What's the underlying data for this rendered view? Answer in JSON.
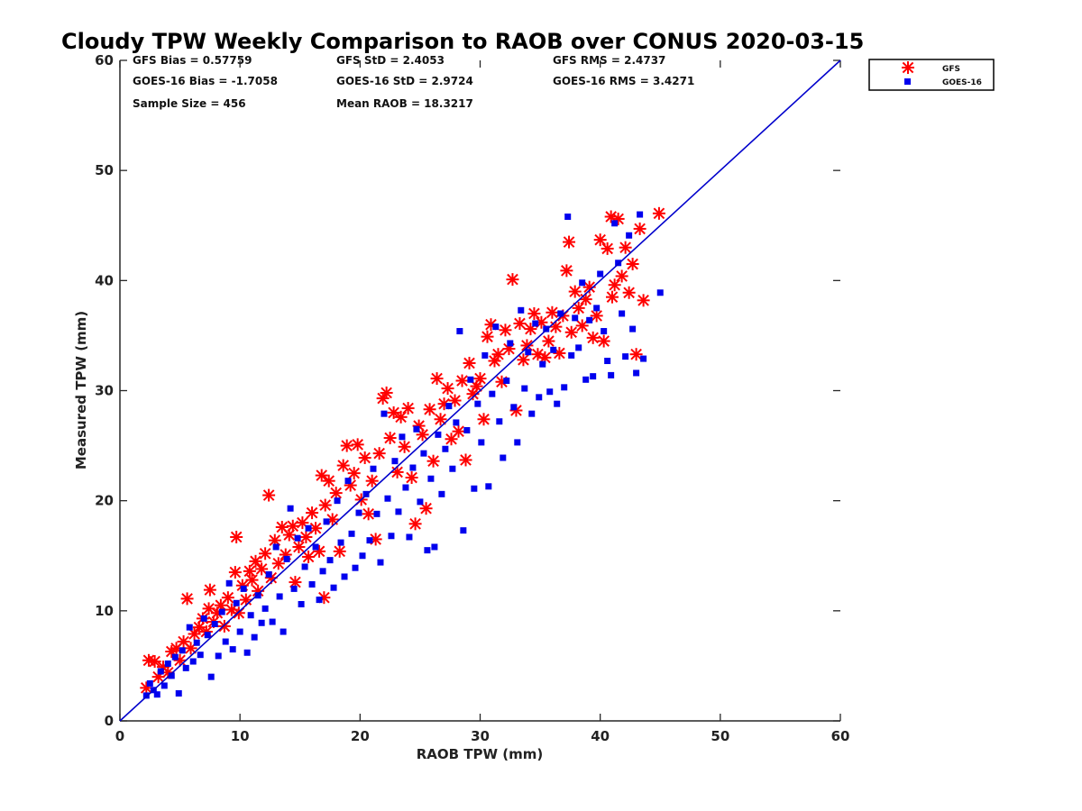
{
  "chart_data": {
    "type": "scatter",
    "title": "Cloudy TPW Weekly Comparison to RAOB over CONUS 2020-03-15",
    "xlabel": "RAOB TPW (mm)",
    "ylabel": "Measured TPW (mm)",
    "xlim": [
      0,
      60
    ],
    "ylim": [
      0,
      60
    ],
    "xticks": [
      0,
      10,
      20,
      30,
      40,
      50,
      60
    ],
    "yticks": [
      0,
      10,
      20,
      30,
      40,
      50,
      60
    ],
    "grid": false,
    "legend_position": "top-right",
    "stats": [
      "GFS Bias = 0.57759",
      "GFS StD = 2.4053",
      "GFS RMS = 2.4737",
      "GOES-16 Bias = -1.7058",
      "GOES-16 StD = 2.9724",
      "GOES-16 RMS = 3.4271",
      "Sample Size = 456",
      "Mean RAOB = 18.3217"
    ],
    "one_to_one_line": {
      "x": [
        0,
        60
      ],
      "y": [
        0,
        60
      ],
      "color": "#0000cc"
    },
    "series": [
      {
        "name": "GFS",
        "marker": "asterisk",
        "color": "#ff0000",
        "points": [
          [
            2.2,
            3.0
          ],
          [
            2.4,
            5.5
          ],
          [
            2.9,
            5.4
          ],
          [
            3.2,
            4.0
          ],
          [
            3.6,
            4.9
          ],
          [
            4.0,
            4.4
          ],
          [
            4.3,
            6.3
          ],
          [
            4.7,
            6.6
          ],
          [
            5.0,
            5.5
          ],
          [
            5.3,
            7.2
          ],
          [
            5.6,
            11.1
          ],
          [
            5.9,
            6.6
          ],
          [
            6.2,
            7.9
          ],
          [
            6.6,
            8.5
          ],
          [
            6.9,
            9.3
          ],
          [
            7.2,
            8.1
          ],
          [
            7.4,
            10.2
          ],
          [
            7.5,
            11.9
          ],
          [
            7.8,
            9.0
          ],
          [
            8.1,
            9.8
          ],
          [
            8.4,
            10.5
          ],
          [
            8.7,
            8.6
          ],
          [
            9.0,
            11.2
          ],
          [
            9.3,
            10.1
          ],
          [
            9.6,
            13.5
          ],
          [
            9.7,
            16.7
          ],
          [
            9.9,
            9.8
          ],
          [
            10.2,
            12.3
          ],
          [
            10.5,
            11.0
          ],
          [
            10.8,
            13.6
          ],
          [
            11.0,
            12.8
          ],
          [
            11.3,
            14.5
          ],
          [
            11.5,
            11.8
          ],
          [
            11.8,
            13.8
          ],
          [
            12.1,
            15.2
          ],
          [
            12.4,
            20.5
          ],
          [
            12.6,
            13.0
          ],
          [
            12.9,
            16.4
          ],
          [
            13.2,
            14.3
          ],
          [
            13.5,
            17.6
          ],
          [
            13.8,
            15.1
          ],
          [
            14.1,
            16.9
          ],
          [
            14.4,
            17.7
          ],
          [
            14.6,
            12.6
          ],
          [
            14.9,
            15.8
          ],
          [
            15.2,
            18.0
          ],
          [
            15.5,
            16.7
          ],
          [
            15.7,
            14.9
          ],
          [
            16.0,
            18.9
          ],
          [
            16.3,
            17.5
          ],
          [
            16.6,
            15.4
          ],
          [
            16.8,
            22.3
          ],
          [
            17.0,
            11.2
          ],
          [
            17.1,
            19.6
          ],
          [
            17.4,
            21.8
          ],
          [
            17.7,
            18.3
          ],
          [
            18.0,
            20.7
          ],
          [
            18.3,
            15.4
          ],
          [
            18.6,
            23.2
          ],
          [
            18.9,
            25.0
          ],
          [
            19.2,
            21.4
          ],
          [
            19.5,
            22.5
          ],
          [
            19.8,
            25.1
          ],
          [
            20.1,
            20.1
          ],
          [
            20.4,
            23.9
          ],
          [
            20.7,
            18.8
          ],
          [
            21.0,
            21.8
          ],
          [
            21.3,
            16.5
          ],
          [
            21.6,
            24.3
          ],
          [
            21.9,
            29.3
          ],
          [
            22.2,
            29.8
          ],
          [
            22.5,
            25.7
          ],
          [
            22.8,
            28.0
          ],
          [
            23.1,
            22.6
          ],
          [
            23.4,
            27.6
          ],
          [
            23.7,
            24.9
          ],
          [
            24.0,
            28.4
          ],
          [
            24.3,
            22.1
          ],
          [
            24.6,
            17.9
          ],
          [
            24.9,
            26.8
          ],
          [
            25.2,
            26.0
          ],
          [
            25.5,
            19.3
          ],
          [
            25.8,
            28.3
          ],
          [
            26.1,
            23.6
          ],
          [
            26.4,
            31.1
          ],
          [
            26.7,
            27.4
          ],
          [
            27.0,
            28.8
          ],
          [
            27.3,
            30.2
          ],
          [
            27.6,
            25.6
          ],
          [
            27.9,
            29.1
          ],
          [
            28.2,
            26.3
          ],
          [
            28.5,
            30.9
          ],
          [
            28.8,
            23.7
          ],
          [
            29.1,
            32.5
          ],
          [
            29.4,
            29.7
          ],
          [
            29.7,
            30.4
          ],
          [
            30.0,
            31.1
          ],
          [
            30.3,
            27.4
          ],
          [
            30.6,
            34.9
          ],
          [
            30.9,
            36.0
          ],
          [
            31.2,
            32.7
          ],
          [
            31.5,
            33.3
          ],
          [
            31.8,
            30.8
          ],
          [
            32.1,
            35.5
          ],
          [
            32.4,
            33.8
          ],
          [
            32.7,
            40.1
          ],
          [
            33.0,
            28.2
          ],
          [
            33.3,
            36.1
          ],
          [
            33.6,
            32.8
          ],
          [
            33.9,
            34.1
          ],
          [
            34.2,
            35.6
          ],
          [
            34.5,
            37.0
          ],
          [
            34.8,
            33.3
          ],
          [
            35.1,
            36.2
          ],
          [
            35.4,
            33.0
          ],
          [
            35.7,
            34.5
          ],
          [
            36.0,
            37.1
          ],
          [
            36.3,
            35.8
          ],
          [
            36.6,
            33.4
          ],
          [
            36.9,
            36.8
          ],
          [
            37.2,
            40.9
          ],
          [
            37.4,
            43.5
          ],
          [
            37.6,
            35.3
          ],
          [
            37.9,
            39.0
          ],
          [
            38.2,
            37.5
          ],
          [
            38.5,
            35.9
          ],
          [
            38.8,
            38.3
          ],
          [
            39.1,
            39.4
          ],
          [
            39.4,
            34.8
          ],
          [
            39.7,
            36.8
          ],
          [
            40.0,
            43.7
          ],
          [
            40.3,
            34.5
          ],
          [
            40.6,
            42.9
          ],
          [
            40.9,
            45.8
          ],
          [
            41.0,
            38.5
          ],
          [
            41.2,
            39.6
          ],
          [
            41.5,
            45.6
          ],
          [
            41.8,
            40.4
          ],
          [
            42.1,
            43.0
          ],
          [
            42.4,
            38.9
          ],
          [
            42.7,
            41.5
          ],
          [
            43.0,
            33.3
          ],
          [
            43.3,
            44.7
          ],
          [
            43.6,
            38.2
          ],
          [
            44.9,
            46.1
          ]
        ]
      },
      {
        "name": "GOES-16",
        "marker": "square",
        "color": "#0000ee",
        "points": [
          [
            2.2,
            2.3
          ],
          [
            2.5,
            3.4
          ],
          [
            2.8,
            2.8
          ],
          [
            3.1,
            2.4
          ],
          [
            3.4,
            4.5
          ],
          [
            3.7,
            3.2
          ],
          [
            4.0,
            5.2
          ],
          [
            4.3,
            4.1
          ],
          [
            4.6,
            5.8
          ],
          [
            4.9,
            2.5
          ],
          [
            5.2,
            6.4
          ],
          [
            5.5,
            4.8
          ],
          [
            5.8,
            8.5
          ],
          [
            6.1,
            5.4
          ],
          [
            6.4,
            7.1
          ],
          [
            6.7,
            6.0
          ],
          [
            7.0,
            9.3
          ],
          [
            7.3,
            7.8
          ],
          [
            7.6,
            4.0
          ],
          [
            7.9,
            8.8
          ],
          [
            8.2,
            5.9
          ],
          [
            8.5,
            9.9
          ],
          [
            8.8,
            7.2
          ],
          [
            9.1,
            12.5
          ],
          [
            9.4,
            6.5
          ],
          [
            9.7,
            10.7
          ],
          [
            10.0,
            8.1
          ],
          [
            10.3,
            12.0
          ],
          [
            10.6,
            6.2
          ],
          [
            10.9,
            9.6
          ],
          [
            11.2,
            7.6
          ],
          [
            11.5,
            11.4
          ],
          [
            11.8,
            8.9
          ],
          [
            12.1,
            10.2
          ],
          [
            12.4,
            13.3
          ],
          [
            12.7,
            9.0
          ],
          [
            13.0,
            15.8
          ],
          [
            13.3,
            11.3
          ],
          [
            13.6,
            8.1
          ],
          [
            13.9,
            14.7
          ],
          [
            14.2,
            19.3
          ],
          [
            14.5,
            12.0
          ],
          [
            14.8,
            16.6
          ],
          [
            15.1,
            10.6
          ],
          [
            15.4,
            14.0
          ],
          [
            15.7,
            17.5
          ],
          [
            16.0,
            12.4
          ],
          [
            16.3,
            15.8
          ],
          [
            16.6,
            11.0
          ],
          [
            16.9,
            13.6
          ],
          [
            17.2,
            18.1
          ],
          [
            17.5,
            14.6
          ],
          [
            17.8,
            12.1
          ],
          [
            18.1,
            20.0
          ],
          [
            18.4,
            16.2
          ],
          [
            18.7,
            13.1
          ],
          [
            19.0,
            21.8
          ],
          [
            19.3,
            17.0
          ],
          [
            19.6,
            13.9
          ],
          [
            19.9,
            18.9
          ],
          [
            20.2,
            15.0
          ],
          [
            20.5,
            20.6
          ],
          [
            20.8,
            16.4
          ],
          [
            21.1,
            22.9
          ],
          [
            21.4,
            18.8
          ],
          [
            21.7,
            14.4
          ],
          [
            22.0,
            27.9
          ],
          [
            22.3,
            20.2
          ],
          [
            22.6,
            16.8
          ],
          [
            22.9,
            23.6
          ],
          [
            23.2,
            19.0
          ],
          [
            23.5,
            25.8
          ],
          [
            23.8,
            21.2
          ],
          [
            24.1,
            16.7
          ],
          [
            24.4,
            23.0
          ],
          [
            24.7,
            26.5
          ],
          [
            25.0,
            19.9
          ],
          [
            25.3,
            24.3
          ],
          [
            25.6,
            15.5
          ],
          [
            25.9,
            22.0
          ],
          [
            26.2,
            15.8
          ],
          [
            26.5,
            26.0
          ],
          [
            26.8,
            20.6
          ],
          [
            27.1,
            24.7
          ],
          [
            27.4,
            28.6
          ],
          [
            27.7,
            22.9
          ],
          [
            28.0,
            27.1
          ],
          [
            28.3,
            35.4
          ],
          [
            28.6,
            17.3
          ],
          [
            28.9,
            26.4
          ],
          [
            29.2,
            31.0
          ],
          [
            29.5,
            21.1
          ],
          [
            29.8,
            28.8
          ],
          [
            30.1,
            25.3
          ],
          [
            30.4,
            33.2
          ],
          [
            30.7,
            21.3
          ],
          [
            31.0,
            29.7
          ],
          [
            31.3,
            35.8
          ],
          [
            31.6,
            27.2
          ],
          [
            31.9,
            23.9
          ],
          [
            32.2,
            30.9
          ],
          [
            32.5,
            34.3
          ],
          [
            32.8,
            28.5
          ],
          [
            33.1,
            25.3
          ],
          [
            33.4,
            37.3
          ],
          [
            33.7,
            30.2
          ],
          [
            34.0,
            33.5
          ],
          [
            34.3,
            27.9
          ],
          [
            34.6,
            36.1
          ],
          [
            34.9,
            29.4
          ],
          [
            35.2,
            32.4
          ],
          [
            35.5,
            35.6
          ],
          [
            35.8,
            29.9
          ],
          [
            36.1,
            33.7
          ],
          [
            36.4,
            28.8
          ],
          [
            36.7,
            37.0
          ],
          [
            37.0,
            30.3
          ],
          [
            37.3,
            45.8
          ],
          [
            37.6,
            33.2
          ],
          [
            37.9,
            36.6
          ],
          [
            38.2,
            33.9
          ],
          [
            38.5,
            39.8
          ],
          [
            38.8,
            31.0
          ],
          [
            39.1,
            36.4
          ],
          [
            39.4,
            31.3
          ],
          [
            39.7,
            37.5
          ],
          [
            40.0,
            40.6
          ],
          [
            40.3,
            35.4
          ],
          [
            40.6,
            32.7
          ],
          [
            40.9,
            31.4
          ],
          [
            41.2,
            45.2
          ],
          [
            41.5,
            41.6
          ],
          [
            41.8,
            37.0
          ],
          [
            42.1,
            33.1
          ],
          [
            42.4,
            44.1
          ],
          [
            42.7,
            35.6
          ],
          [
            43.0,
            31.6
          ],
          [
            43.3,
            46.0
          ],
          [
            43.6,
            32.9
          ],
          [
            45.0,
            38.9
          ]
        ]
      }
    ]
  }
}
